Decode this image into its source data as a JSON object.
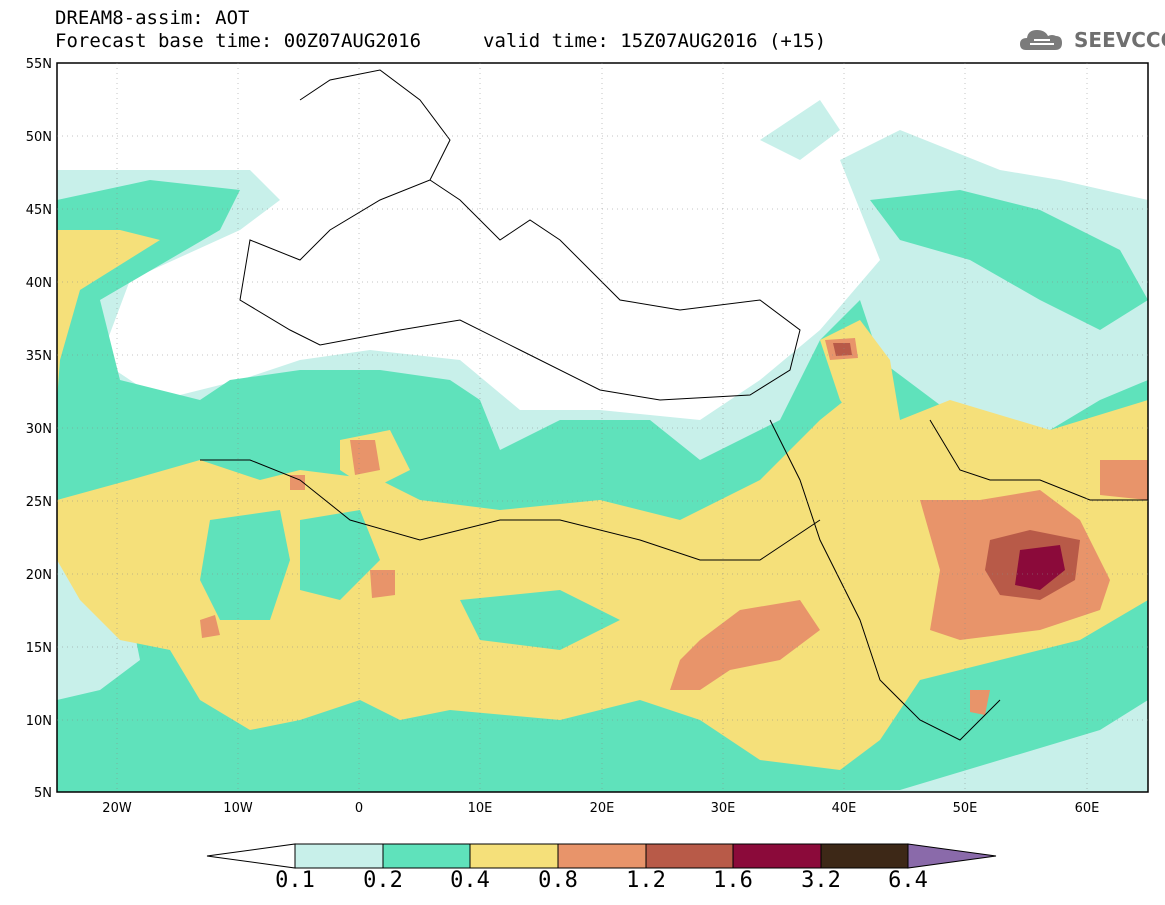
{
  "header": {
    "line1": "DREAM8-assim: AOT",
    "line2": "Forecast base time: 00Z07AUG2016",
    "valid": "valid time: 15Z07AUG2016 (+15)"
  },
  "logo": {
    "text": "SEEVCCC",
    "icon": "cloud-icon"
  },
  "map": {
    "lon_range": [
      -25,
      65
    ],
    "lat_range": [
      5,
      55
    ],
    "lat_ticks": [
      "55N",
      "50N",
      "45N",
      "40N",
      "35N",
      "30N",
      "25N",
      "20N",
      "15N",
      "10N",
      "5N"
    ],
    "lon_ticks": [
      "20W",
      "10W",
      "0",
      "10E",
      "20E",
      "30E",
      "40E",
      "50E",
      "60E"
    ]
  },
  "colorbar": {
    "labels": [
      "0.1",
      "0.2",
      "0.4",
      "0.8",
      "1.2",
      "1.6",
      "3.2",
      "6.4"
    ],
    "colors": [
      "#c8f0ea",
      "#5fe2bb",
      "#f5e07a",
      "#e8946a",
      "#b85a48",
      "#8b0a3a",
      "#3d2817",
      "#8a6aaa"
    ],
    "below_color": "#ffffff"
  }
}
